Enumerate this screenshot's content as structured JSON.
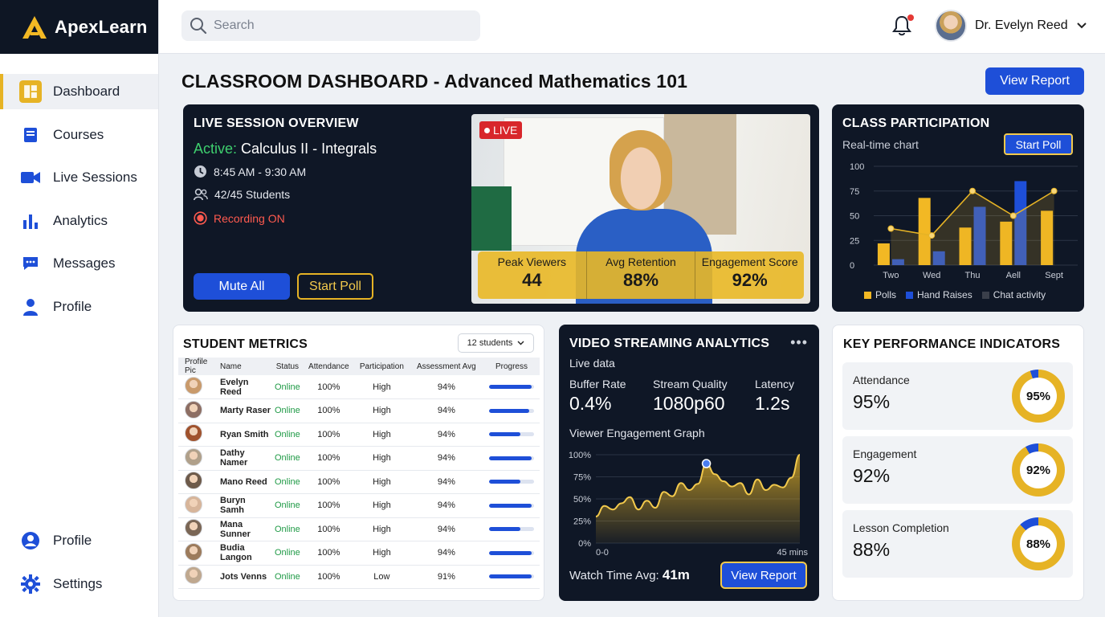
{
  "app": {
    "name": "ApexLearn"
  },
  "colors": {
    "accent": "#E6B325",
    "primary": "#1E4FD8",
    "dark": "#0F1726",
    "online": "#1F9A46",
    "recording": "#FF5A4F"
  },
  "sidebar": {
    "items": [
      {
        "label": "Dashboard",
        "icon": "dashboard-icon",
        "active": true
      },
      {
        "label": "Courses",
        "icon": "book-icon"
      },
      {
        "label": "Live Sessions",
        "icon": "video-camera-icon"
      },
      {
        "label": "Analytics",
        "icon": "bar-chart-icon"
      },
      {
        "label": "Messages",
        "icon": "chat-icon"
      },
      {
        "label": "Profile",
        "icon": "person-icon"
      }
    ],
    "bottom": [
      {
        "label": "Profile",
        "icon": "account-circle-icon"
      },
      {
        "label": "Settings",
        "icon": "gear-icon"
      }
    ]
  },
  "header": {
    "search_placeholder": "Search",
    "user_name": "Dr. Evelyn Reed"
  },
  "page": {
    "title": "CLASSROOM DASHBOARD - Advanced Mathematics 101",
    "view_report": "View Report"
  },
  "live": {
    "title": "LIVE SESSION OVERVIEW",
    "active_prefix": "Active:",
    "active_name": "Calculus II - Integrals",
    "time": "8:45 AM - 9:30 AM",
    "students": "42/45 Students",
    "recording": "Recording ON",
    "mute_all": "Mute All",
    "start_poll": "Start Poll",
    "badge": "LIVE",
    "stats": [
      {
        "label": "Peak Viewers",
        "value": "44"
      },
      {
        "label": "Avg Retention",
        "value": "88%"
      },
      {
        "label": "Engagement Score",
        "value": "92%"
      }
    ]
  },
  "participation": {
    "title": "CLASS PARTICIPATION",
    "subtitle": "Real-time chart",
    "start_poll": "Start Poll",
    "legend": [
      "Polls",
      "Hand Raises",
      "Chat activity"
    ]
  },
  "chart_data": [
    {
      "type": "bar",
      "title": "CLASS PARTICIPATION",
      "categories": [
        "Two",
        "Wed",
        "Thu",
        "Aell",
        "Sept"
      ],
      "yticks": [
        "100",
        "75",
        "50",
        "25",
        "0"
      ],
      "ylim": [
        0,
        100
      ],
      "series": [
        {
          "name": "Polls",
          "type": "bar",
          "color": "#F2B824",
          "values": [
            22,
            68,
            38,
            44,
            55
          ]
        },
        {
          "name": "Hand Raises",
          "type": "bar",
          "color": "#1E4FD8",
          "values": [
            6,
            14,
            59,
            85,
            0
          ]
        },
        {
          "name": "Chat activity",
          "type": "line",
          "color": "#E6B325",
          "values": [
            37,
            30,
            75,
            50,
            75
          ]
        }
      ],
      "legend_position": "bottom"
    },
    {
      "type": "area",
      "title": "Viewer Engagement Graph",
      "x_labels": [
        "0-0",
        "45 mins"
      ],
      "yticks": [
        "100%",
        "75%",
        "50%",
        "25%",
        "0%"
      ],
      "ylim": [
        0,
        100
      ],
      "values": [
        30,
        42,
        38,
        45,
        52,
        38,
        48,
        40,
        58,
        53,
        68,
        60,
        67,
        90,
        78,
        70,
        64,
        68,
        55,
        72,
        60,
        66,
        63,
        74,
        100
      ],
      "highlight_index": 13
    }
  ],
  "students": {
    "title": "STUDENT METRICS",
    "count_label": "12 students",
    "columns": [
      "Profile Pic",
      "Name",
      "Status",
      "Attendance",
      "Participation",
      "Assessment Avg",
      "Progress"
    ],
    "rows": [
      {
        "name": "Evelyn Reed",
        "status": "Online",
        "attendance": "100%",
        "participation": "High",
        "assessment": "94%",
        "progress": 0.95
      },
      {
        "name": "Marty Raser",
        "status": "Online",
        "attendance": "100%",
        "participation": "High",
        "assessment": "94%",
        "progress": 0.9
      },
      {
        "name": "Ryan Smith",
        "status": "Online",
        "attendance": "100%",
        "participation": "High",
        "assessment": "94%",
        "progress": 0.7
      },
      {
        "name": "Dathy Namer",
        "status": "Online",
        "attendance": "100%",
        "participation": "High",
        "assessment": "94%",
        "progress": 0.95
      },
      {
        "name": "Mano Reed",
        "status": "Online",
        "attendance": "100%",
        "participation": "High",
        "assessment": "94%",
        "progress": 0.7
      },
      {
        "name": "Buryn Samh",
        "status": "Online",
        "attendance": "100%",
        "participation": "High",
        "assessment": "94%",
        "progress": 0.95
      },
      {
        "name": "Mana Sunner",
        "status": "Online",
        "attendance": "100%",
        "participation": "High",
        "assessment": "94%",
        "progress": 0.7
      },
      {
        "name": "Budia Langon",
        "status": "Online",
        "attendance": "100%",
        "participation": "High",
        "assessment": "94%",
        "progress": 0.95
      },
      {
        "name": "Jots Venns",
        "status": "Online",
        "attendance": "100%",
        "participation": "Low",
        "assessment": "91%",
        "progress": 0.95
      }
    ]
  },
  "stream": {
    "title": "VIDEO STREAMING ANALYTICS",
    "subtitle": "Live data",
    "metrics": [
      {
        "label": "Buffer Rate",
        "value": "0.4%"
      },
      {
        "label": "Stream Quality",
        "value": "1080p60"
      },
      {
        "label": "Latency",
        "value": "1.2s"
      }
    ],
    "graph_title": "Viewer Engagement Graph",
    "watch_label": "Watch Time Avg:",
    "watch_value": "41m",
    "view_report": "View Report"
  },
  "kpi": {
    "title": "KEY PERFORMANCE INDICATORS",
    "items": [
      {
        "label": "Attendance",
        "value": "95%",
        "ring_label": "95%",
        "fraction": 0.95
      },
      {
        "label": "Engagement",
        "value": "92%",
        "ring_label": "92%",
        "fraction": 0.92
      },
      {
        "label": "Lesson Completion",
        "value": "88%",
        "ring_label": "88%",
        "fraction": 0.88
      }
    ]
  }
}
